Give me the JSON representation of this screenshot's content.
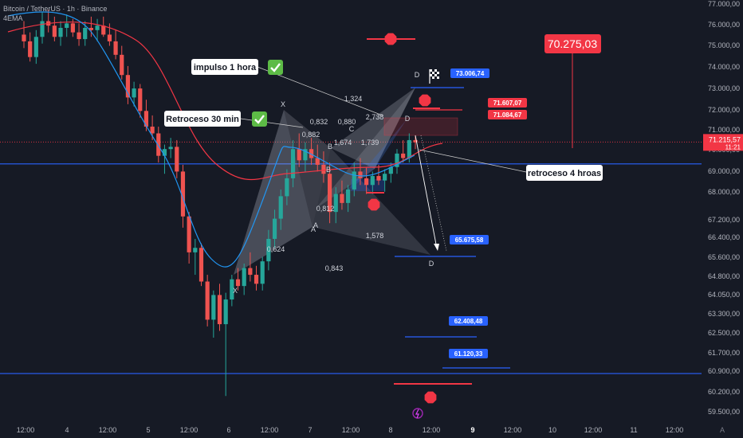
{
  "header": {
    "symbol": "Bitcoin / TetherUS · 1h · Binance",
    "indicator": "4EMA"
  },
  "colors": {
    "background": "#161a25",
    "bull": "#26a69a",
    "bear": "#ef5350",
    "level_line": "#2962ff",
    "ema_fast": "#2196f3",
    "ema_slow": "#f23645",
    "stop": "#f23645",
    "target": "#2962ff",
    "current": "#f23645"
  },
  "chart_data": {
    "type": "candlestick",
    "ylim": [
      59200,
      77400
    ],
    "y_ticks": [
      "77.000,00",
      "76.000,00",
      "75.000,00",
      "74.000,00",
      "73.000,00",
      "72.000,00",
      "71.000,00",
      "70.000,00",
      "69.000,00",
      "68.000,00",
      "67.200,00",
      "66.400,00",
      "65.600,00",
      "64.800,00",
      "64.050,00",
      "63.300,00",
      "62.500,00",
      "61.700,00",
      "60.900,00",
      "60.200,00",
      "59.500,00"
    ],
    "x_ticks": [
      "12:00",
      "4",
      "12:00",
      "5",
      "12:00",
      "6",
      "12:00",
      "7",
      "12:00",
      "8",
      "12:00",
      "9",
      "12:00",
      "10",
      "12:00",
      "11",
      "12:00"
    ],
    "x_tick_bold": [
      false,
      false,
      false,
      false,
      false,
      false,
      false,
      false,
      false,
      false,
      false,
      true,
      false,
      false,
      false,
      false,
      false
    ],
    "current_price": "71.215,57",
    "countdown": "11:21",
    "current_price_value": 71215,
    "support_levels": [
      70240,
      60900
    ],
    "targets": [
      {
        "label": "73.006,74",
        "value": 73007,
        "color": "#2962ff"
      },
      {
        "label": "71.607,07",
        "value": 71607,
        "color": "#f23645"
      },
      {
        "label": "71.084,67",
        "value": 71085,
        "color": "#f23645"
      },
      {
        "label": "65.675,58",
        "value": 65676,
        "color": "#2962ff"
      },
      {
        "label": "62.408,48",
        "value": 62408,
        "color": "#2962ff"
      },
      {
        "label": "61.120,33",
        "value": 61120,
        "color": "#2962ff"
      }
    ],
    "big_price_label": "70.275,03",
    "callouts": [
      "impulso 1 hora",
      "Retroceso 30 min",
      "retroceso 4 hroas"
    ],
    "pattern_labels": {
      "ratios": [
        "1,324",
        "0,832",
        "0,880",
        "2,738",
        "1,674",
        "1,739",
        "1,578",
        "0,624",
        "0,843",
        "0,812",
        "0,882"
      ],
      "points": [
        "X",
        "A",
        "B",
        "C",
        "D",
        "D",
        "D",
        "X",
        "A",
        "B"
      ]
    },
    "stops": [
      76900,
      72400,
      67900,
      59550
    ],
    "ema_note": "two moving averages",
    "candles": [
      {
        "o": 76000,
        "h": 76600,
        "l": 75400,
        "c": 75700
      },
      {
        "o": 75700,
        "h": 76100,
        "l": 74800,
        "c": 75000
      },
      {
        "o": 75000,
        "h": 76200,
        "l": 74700,
        "c": 75900
      },
      {
        "o": 75900,
        "h": 77000,
        "l": 75600,
        "c": 76600
      },
      {
        "o": 76600,
        "h": 77100,
        "l": 76100,
        "c": 76400
      },
      {
        "o": 76400,
        "h": 76800,
        "l": 75700,
        "c": 75900
      },
      {
        "o": 75900,
        "h": 76600,
        "l": 75500,
        "c": 76300
      },
      {
        "o": 76300,
        "h": 76900,
        "l": 75900,
        "c": 76500
      },
      {
        "o": 76500,
        "h": 76700,
        "l": 75900,
        "c": 76100
      },
      {
        "o": 76100,
        "h": 76500,
        "l": 75500,
        "c": 75800
      },
      {
        "o": 75800,
        "h": 76600,
        "l": 75500,
        "c": 76300
      },
      {
        "o": 76300,
        "h": 76800,
        "l": 75900,
        "c": 76200
      },
      {
        "o": 76200,
        "h": 76700,
        "l": 75700,
        "c": 76400
      },
      {
        "o": 76400,
        "h": 76800,
        "l": 75900,
        "c": 76000
      },
      {
        "o": 76000,
        "h": 76500,
        "l": 75500,
        "c": 75700
      },
      {
        "o": 75700,
        "h": 76200,
        "l": 74900,
        "c": 75100
      },
      {
        "o": 75100,
        "h": 75500,
        "l": 74000,
        "c": 74200
      },
      {
        "o": 74200,
        "h": 74600,
        "l": 72900,
        "c": 73200
      },
      {
        "o": 73200,
        "h": 73900,
        "l": 72800,
        "c": 73600
      },
      {
        "o": 73600,
        "h": 73800,
        "l": 72300,
        "c": 72600
      },
      {
        "o": 72600,
        "h": 73100,
        "l": 71700,
        "c": 71900
      },
      {
        "o": 71900,
        "h": 72400,
        "l": 71300,
        "c": 71600
      },
      {
        "o": 71600,
        "h": 71900,
        "l": 70300,
        "c": 70600
      },
      {
        "o": 70600,
        "h": 71100,
        "l": 69800,
        "c": 70900
      },
      {
        "o": 70900,
        "h": 71400,
        "l": 70500,
        "c": 71000
      },
      {
        "o": 71000,
        "h": 71300,
        "l": 69600,
        "c": 69900
      },
      {
        "o": 69900,
        "h": 70200,
        "l": 67400,
        "c": 67900
      },
      {
        "o": 67900,
        "h": 68100,
        "l": 65800,
        "c": 66300
      },
      {
        "o": 66300,
        "h": 66900,
        "l": 65300,
        "c": 66500
      },
      {
        "o": 66500,
        "h": 66700,
        "l": 64800,
        "c": 65000
      },
      {
        "o": 65000,
        "h": 65300,
        "l": 63000,
        "c": 63300
      },
      {
        "o": 63300,
        "h": 64600,
        "l": 62500,
        "c": 64400
      },
      {
        "o": 64400,
        "h": 64900,
        "l": 62800,
        "c": 63100
      },
      {
        "o": 63100,
        "h": 64500,
        "l": 59900,
        "c": 64200
      },
      {
        "o": 64200,
        "h": 65300,
        "l": 63900,
        "c": 65100
      },
      {
        "o": 65100,
        "h": 65600,
        "l": 64600,
        "c": 64800
      },
      {
        "o": 64800,
        "h": 65800,
        "l": 64400,
        "c": 65600
      },
      {
        "o": 65600,
        "h": 66300,
        "l": 65000,
        "c": 65300
      },
      {
        "o": 65300,
        "h": 65700,
        "l": 64600,
        "c": 64900
      },
      {
        "o": 64900,
        "h": 66100,
        "l": 64600,
        "c": 65900
      },
      {
        "o": 65900,
        "h": 67300,
        "l": 65500,
        "c": 66900
      },
      {
        "o": 66900,
        "h": 68200,
        "l": 66500,
        "c": 67800
      },
      {
        "o": 67800,
        "h": 69100,
        "l": 67300,
        "c": 68800
      },
      {
        "o": 68800,
        "h": 70000,
        "l": 68400,
        "c": 69600
      },
      {
        "o": 69600,
        "h": 71300,
        "l": 69200,
        "c": 70900
      },
      {
        "o": 70900,
        "h": 71600,
        "l": 70100,
        "c": 70400
      },
      {
        "o": 70400,
        "h": 71200,
        "l": 69900,
        "c": 70900
      },
      {
        "o": 70900,
        "h": 71400,
        "l": 70200,
        "c": 70500
      },
      {
        "o": 70500,
        "h": 71100,
        "l": 69900,
        "c": 70200
      },
      {
        "o": 70200,
        "h": 70800,
        "l": 69400,
        "c": 69800
      },
      {
        "o": 69800,
        "h": 70300,
        "l": 67600,
        "c": 68100
      },
      {
        "o": 68100,
        "h": 69200,
        "l": 67600,
        "c": 68900
      },
      {
        "o": 68900,
        "h": 69500,
        "l": 68200,
        "c": 68500
      },
      {
        "o": 68500,
        "h": 69300,
        "l": 68100,
        "c": 69100
      },
      {
        "o": 69100,
        "h": 70300,
        "l": 68800,
        "c": 69900
      },
      {
        "o": 69900,
        "h": 70500,
        "l": 69300,
        "c": 69600
      },
      {
        "o": 69600,
        "h": 70100,
        "l": 68900,
        "c": 69300
      },
      {
        "o": 69300,
        "h": 69900,
        "l": 68900,
        "c": 69700
      },
      {
        "o": 69700,
        "h": 70200,
        "l": 69300,
        "c": 69500
      },
      {
        "o": 69500,
        "h": 70000,
        "l": 69000,
        "c": 69800
      },
      {
        "o": 69800,
        "h": 70300,
        "l": 69400,
        "c": 70100
      },
      {
        "o": 70100,
        "h": 70900,
        "l": 69800,
        "c": 70700
      },
      {
        "o": 70700,
        "h": 71300,
        "l": 70300,
        "c": 70500
      },
      {
        "o": 70500,
        "h": 71600,
        "l": 70300,
        "c": 71300
      },
      {
        "o": 71300,
        "h": 71500,
        "l": 70900,
        "c": 71200
      }
    ]
  }
}
